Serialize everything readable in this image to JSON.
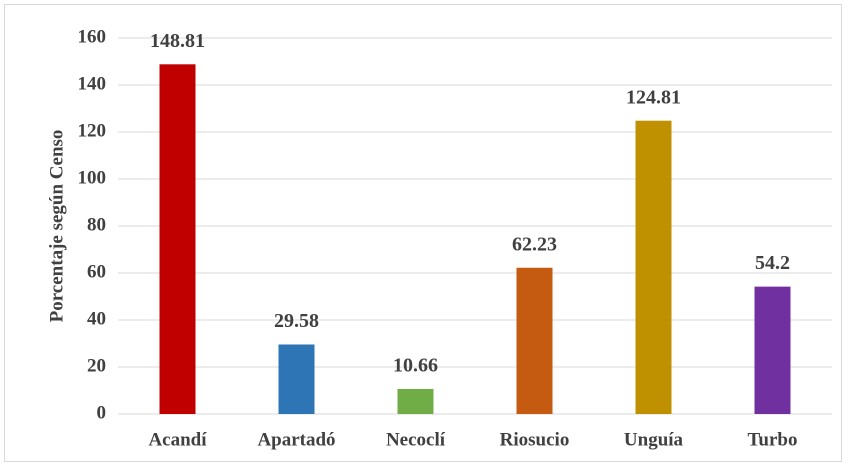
{
  "chart_data": {
    "type": "bar",
    "y_label": "Porcentaje según Censo",
    "categories": [
      "Acandí",
      "Apartadó",
      "Necoclí",
      "Riosucio",
      "Unguía",
      "Turbo"
    ],
    "values": [
      148.81,
      29.58,
      10.66,
      62.23,
      124.81,
      54.2
    ],
    "colors": [
      "#c00000",
      "#2e75b6",
      "#70ad47",
      "#c55a11",
      "#bf9000",
      "#7030a0"
    ],
    "ylim": [
      0,
      160
    ],
    "yticks": [
      0,
      20,
      40,
      60,
      80,
      100,
      120,
      140,
      160
    ],
    "grid": true
  }
}
